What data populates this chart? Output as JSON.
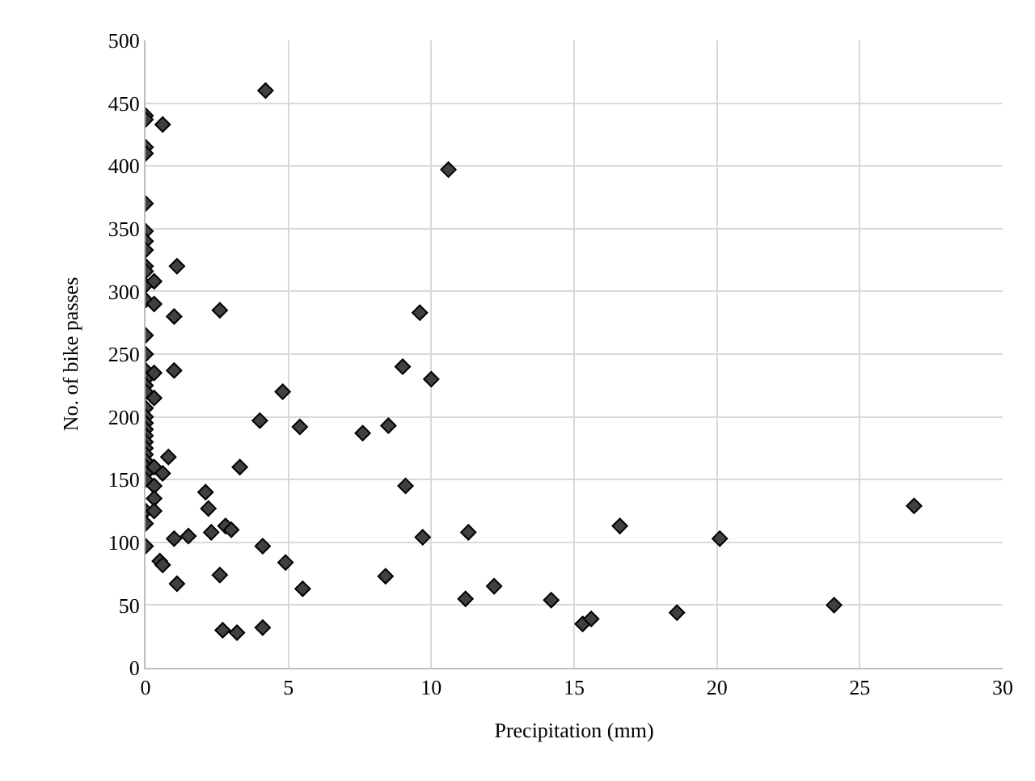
{
  "chart_data": {
    "type": "scatter",
    "xlabel": "Precipitation (mm)",
    "ylabel": "No. of bike passes",
    "x": [
      0,
      0,
      0,
      0,
      0,
      0,
      0,
      0,
      0,
      0,
      0,
      0,
      0,
      0,
      0,
      0,
      0,
      0,
      0,
      0,
      0,
      0,
      0,
      0,
      0,
      0,
      0,
      0,
      0,
      0,
      0,
      0,
      0,
      0.3,
      0.3,
      0.3,
      0.3,
      0.3,
      0.3,
      0.3,
      0.3,
      0.5,
      0.6,
      0.6,
      0.8,
      0.6,
      1.0,
      1.0,
      1.0,
      1.1,
      1.1,
      1.5,
      2.1,
      2.2,
      2.3,
      2.6,
      2.6,
      2.7,
      2.8,
      3.0,
      3.2,
      3.3,
      4.0,
      4.1,
      4.1,
      4.2,
      4.8,
      4.9,
      5.4,
      5.5,
      7.6,
      8.4,
      8.5,
      9.0,
      9.1,
      9.6,
      9.7,
      10.0,
      10.6,
      11.3,
      11.2,
      12.2,
      14.2,
      15.3,
      15.6,
      16.6,
      18.6,
      20.1,
      24.1,
      26.9
    ],
    "values": [
      440,
      437,
      415,
      410,
      370,
      348,
      340,
      333,
      320,
      316,
      305,
      293,
      265,
      250,
      237,
      230,
      225,
      220,
      207,
      200,
      195,
      190,
      185,
      180,
      175,
      170,
      165,
      160,
      155,
      150,
      125,
      115,
      97,
      308,
      290,
      235,
      215,
      160,
      145,
      135,
      125,
      85,
      82,
      433,
      168,
      155,
      280,
      237,
      103,
      320,
      67,
      105,
      140,
      127,
      108,
      285,
      74,
      30,
      113,
      110,
      28,
      160,
      197,
      97,
      32,
      460,
      220,
      84,
      192,
      63,
      187,
      73,
      193,
      240,
      145,
      283,
      104,
      230,
      397,
      108,
      55,
      65,
      54,
      35,
      39,
      113,
      44,
      103,
      50,
      129
    ],
    "color": "#404040",
    "marker": "diamond",
    "xlim": [
      0,
      30
    ],
    "xticks": [
      0,
      5,
      10,
      15,
      20,
      25,
      30
    ],
    "ylim": [
      0,
      500
    ],
    "yticks": [
      0,
      50,
      100,
      150,
      200,
      250,
      300,
      350,
      400,
      450,
      500
    ],
    "grid": true,
    "legend": false
  }
}
